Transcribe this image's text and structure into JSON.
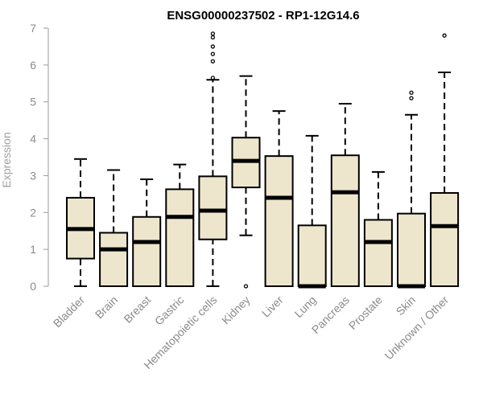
{
  "chart_data": {
    "type": "boxplot",
    "title": "ENSG00000237502 - RP1-12G14.6",
    "xlabel": "",
    "ylabel": "Expression",
    "ylim": [
      0,
      7
    ],
    "yticks": [
      0,
      1,
      2,
      3,
      4,
      5,
      6,
      7
    ],
    "box_fill": "#ede6cd",
    "box_stroke": "#000000",
    "categories": [
      "Bladder",
      "Brain",
      "Breast",
      "Gastric",
      "Hematopoietic cells",
      "Kidney",
      "Liver",
      "Lung",
      "Pancreas",
      "Prostate",
      "Skin",
      "Unknown / Other"
    ],
    "boxes": [
      {
        "whisker_low": 0.0,
        "q1": 0.75,
        "median": 1.55,
        "q3": 2.4,
        "whisker_high": 3.45,
        "outliers": []
      },
      {
        "whisker_low": 0.0,
        "q1": 0.0,
        "median": 1.0,
        "q3": 1.45,
        "whisker_high": 3.15,
        "outliers": []
      },
      {
        "whisker_low": 0.0,
        "q1": 0.0,
        "median": 1.2,
        "q3": 1.88,
        "whisker_high": 2.9,
        "outliers": []
      },
      {
        "whisker_low": 0.0,
        "q1": 0.0,
        "median": 1.88,
        "q3": 2.63,
        "whisker_high": 3.3,
        "outliers": []
      },
      {
        "whisker_low": 0.0,
        "q1": 1.27,
        "median": 2.05,
        "q3": 2.98,
        "whisker_high": 5.6,
        "outliers": [
          5.65,
          6.1,
          6.3,
          6.5,
          6.75,
          6.85
        ]
      },
      {
        "whisker_low": 1.38,
        "q1": 2.68,
        "median": 3.4,
        "q3": 4.03,
        "whisker_high": 5.7,
        "outliers": [
          0.0
        ]
      },
      {
        "whisker_low": 0.0,
        "q1": 0.0,
        "median": 2.4,
        "q3": 3.53,
        "whisker_high": 4.75,
        "outliers": []
      },
      {
        "whisker_low": 0.0,
        "q1": 0.0,
        "median": 0.0,
        "q3": 1.65,
        "whisker_high": 4.08,
        "outliers": []
      },
      {
        "whisker_low": 0.0,
        "q1": 0.0,
        "median": 2.55,
        "q3": 3.55,
        "whisker_high": 4.95,
        "outliers": []
      },
      {
        "whisker_low": 0.0,
        "q1": 0.0,
        "median": 1.2,
        "q3": 1.8,
        "whisker_high": 3.1,
        "outliers": []
      },
      {
        "whisker_low": 0.0,
        "q1": 0.0,
        "median": 0.0,
        "q3": 1.97,
        "whisker_high": 4.65,
        "outliers": [
          5.1,
          5.25
        ]
      },
      {
        "whisker_low": 0.0,
        "q1": 0.0,
        "median": 1.63,
        "q3": 2.53,
        "whisker_high": 5.8,
        "outliers": [
          6.8
        ]
      }
    ]
  }
}
